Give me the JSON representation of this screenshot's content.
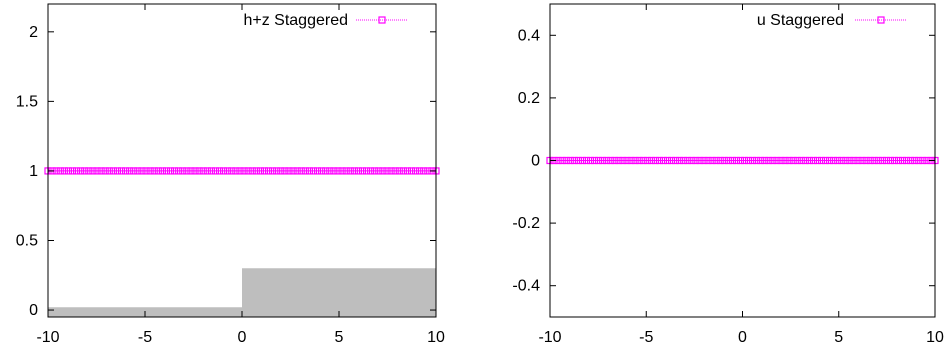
{
  "chart_data": [
    {
      "type": "line",
      "xlim": [
        -10,
        10
      ],
      "ylim": [
        -0.05,
        2.2
      ],
      "x_ticks": [
        -10,
        -5,
        0,
        5,
        10
      ],
      "x_tick_labels": [
        "-10",
        "-5",
        "0",
        "5",
        "10"
      ],
      "y_ticks": [
        0,
        0.5,
        1,
        1.5,
        2
      ],
      "y_tick_labels": [
        "0",
        "0.5",
        "1",
        "1.5",
        "2"
      ],
      "grid": false,
      "legend_position": "top-right",
      "series": [
        {
          "name": "h+z Staggered",
          "color": "#ff00ff",
          "marker": "square",
          "x_start": -10,
          "x_end": 10,
          "n_points": 96,
          "value": 1
        }
      ],
      "bathymetry": {
        "color": "#bebebe",
        "segments": [
          {
            "x_start": -10,
            "x_end": 0,
            "value": 0.02
          },
          {
            "x_start": 0,
            "x_end": 10,
            "value": 0.3
          }
        ]
      }
    },
    {
      "type": "line",
      "xlim": [
        -10,
        10
      ],
      "ylim": [
        -0.5,
        0.5
      ],
      "x_ticks": [
        -10,
        -5,
        0,
        5,
        10
      ],
      "x_tick_labels": [
        "-10",
        "-5",
        "0",
        "5",
        "10"
      ],
      "y_ticks": [
        -0.4,
        -0.2,
        0,
        0.2,
        0.4
      ],
      "y_tick_labels": [
        "-0.4",
        "-0.2",
        "0",
        "0.2",
        "0.4"
      ],
      "grid": false,
      "legend_position": "top-right",
      "series": [
        {
          "name": "u Staggered",
          "color": "#ff00ff",
          "marker": "square",
          "x_start": -10,
          "x_end": 10,
          "n_points": 96,
          "value": 0
        }
      ]
    }
  ]
}
